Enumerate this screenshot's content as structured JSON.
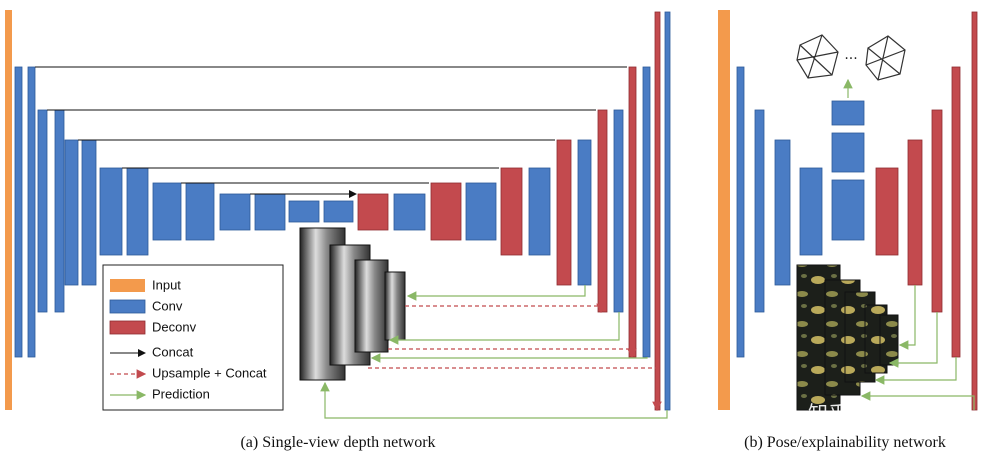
{
  "legend": {
    "items": [
      "Input",
      "Conv",
      "Deconv",
      "Concat",
      "Upsample + Concat",
      "Prediction"
    ]
  },
  "dots": "···",
  "captions": {
    "a": "(a) Single-view depth network",
    "b": "(b) Pose/explainability network"
  },
  "watermark": "知乎 @黄浴"
}
